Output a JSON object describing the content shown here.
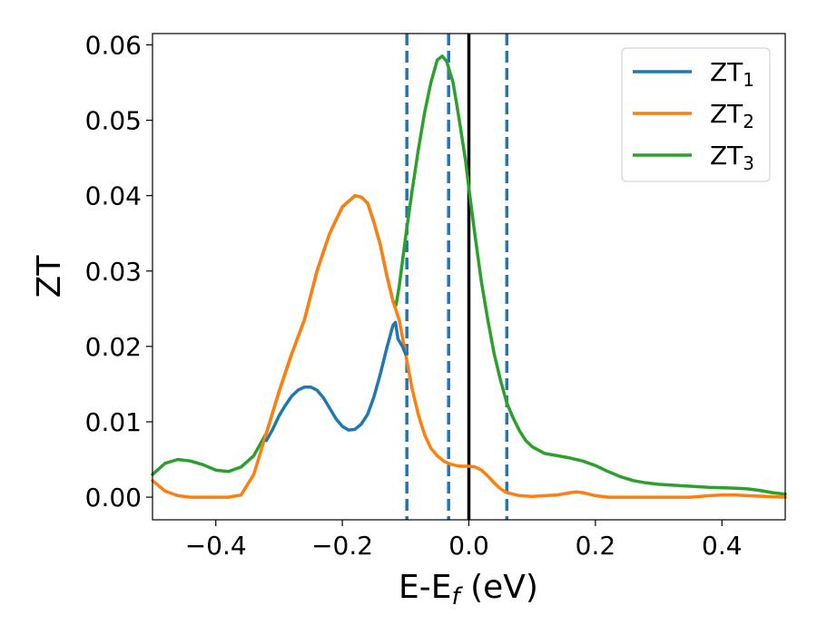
{
  "chart_data": {
    "type": "line",
    "xlabel_main": "E-E",
    "xlabel_sub": "f",
    "xlabel_unit": " (eV)",
    "ylabel": "ZT",
    "xlim": [
      -0.5,
      0.5
    ],
    "ylim": [
      -0.003,
      0.0615
    ],
    "grid": false,
    "legend_position": "top-right",
    "x_ticks": [
      {
        "value": -0.4,
        "label": "−0.4"
      },
      {
        "value": -0.2,
        "label": "−0.2"
      },
      {
        "value": 0.0,
        "label": "0.0"
      },
      {
        "value": 0.2,
        "label": "0.2"
      },
      {
        "value": 0.4,
        "label": "0.4"
      }
    ],
    "y_ticks": [
      {
        "value": 0.0,
        "label": "0.00"
      },
      {
        "value": 0.01,
        "label": "0.01"
      },
      {
        "value": 0.02,
        "label": "0.02"
      },
      {
        "value": 0.03,
        "label": "0.03"
      },
      {
        "value": 0.04,
        "label": "0.04"
      },
      {
        "value": 0.05,
        "label": "0.05"
      },
      {
        "value": 0.06,
        "label": "0.06"
      }
    ],
    "vertical_lines": [
      {
        "x": -0.098,
        "color": "#1f77b4",
        "style": "dashed"
      },
      {
        "x": -0.032,
        "color": "#1f77b4",
        "style": "dashed"
      },
      {
        "x": 0.0,
        "color": "#000000",
        "style": "solid"
      },
      {
        "x": 0.06,
        "color": "#1f77b4",
        "style": "dashed"
      }
    ],
    "series": [
      {
        "name": "ZT",
        "name_sub": "3",
        "color": "#2ca02c",
        "points": [
          [
            -0.5,
            0.003
          ],
          [
            -0.48,
            0.0045
          ],
          [
            -0.46,
            0.005
          ],
          [
            -0.44,
            0.0048
          ],
          [
            -0.42,
            0.0043
          ],
          [
            -0.4,
            0.0036
          ],
          [
            -0.38,
            0.0034
          ],
          [
            -0.36,
            0.004
          ],
          [
            -0.34,
            0.0055
          ],
          [
            -0.32,
            0.0085
          ],
          [
            -0.3,
            0.014
          ],
          [
            -0.28,
            0.019
          ],
          [
            -0.26,
            0.0235
          ],
          [
            -0.24,
            0.03
          ],
          [
            -0.22,
            0.035
          ],
          [
            -0.2,
            0.0385
          ],
          [
            -0.18,
            0.04
          ],
          [
            -0.17,
            0.0398
          ],
          [
            -0.16,
            0.039
          ],
          [
            -0.15,
            0.0365
          ],
          [
            -0.14,
            0.0335
          ],
          [
            -0.13,
            0.0295
          ],
          [
            -0.12,
            0.026
          ],
          [
            -0.115,
            0.0255
          ],
          [
            -0.11,
            0.028
          ],
          [
            -0.1,
            0.0345
          ],
          [
            -0.09,
            0.0405
          ],
          [
            -0.08,
            0.046
          ],
          [
            -0.07,
            0.051
          ],
          [
            -0.06,
            0.055
          ],
          [
            -0.05,
            0.058
          ],
          [
            -0.042,
            0.0585
          ],
          [
            -0.035,
            0.0578
          ],
          [
            -0.025,
            0.055
          ],
          [
            -0.015,
            0.05
          ],
          [
            -0.005,
            0.0445
          ],
          [
            0.0,
            0.041
          ],
          [
            0.01,
            0.0345
          ],
          [
            0.02,
            0.0285
          ],
          [
            0.03,
            0.0235
          ],
          [
            0.04,
            0.019
          ],
          [
            0.05,
            0.0155
          ],
          [
            0.06,
            0.0125
          ],
          [
            0.07,
            0.0105
          ],
          [
            0.08,
            0.0088
          ],
          [
            0.09,
            0.0075
          ],
          [
            0.1,
            0.0067
          ],
          [
            0.12,
            0.0058
          ],
          [
            0.14,
            0.0055
          ],
          [
            0.16,
            0.0052
          ],
          [
            0.18,
            0.0048
          ],
          [
            0.2,
            0.0042
          ],
          [
            0.22,
            0.0034
          ],
          [
            0.24,
            0.0027
          ],
          [
            0.26,
            0.0022
          ],
          [
            0.28,
            0.0019
          ],
          [
            0.3,
            0.0017
          ],
          [
            0.34,
            0.0015
          ],
          [
            0.38,
            0.0013
          ],
          [
            0.42,
            0.0012
          ],
          [
            0.44,
            0.0011
          ],
          [
            0.46,
            0.0009
          ],
          [
            0.48,
            0.0006
          ],
          [
            0.5,
            0.0004
          ]
        ]
      },
      {
        "name": "ZT",
        "name_sub": "2",
        "color": "#ff7f0e",
        "points": [
          [
            -0.5,
            0.0022
          ],
          [
            -0.48,
            0.0008
          ],
          [
            -0.46,
            0.0002
          ],
          [
            -0.44,
            0.0
          ],
          [
            -0.42,
            0.0
          ],
          [
            -0.4,
            0.0
          ],
          [
            -0.38,
            0.0
          ],
          [
            -0.36,
            0.0003
          ],
          [
            -0.34,
            0.003
          ],
          [
            -0.32,
            0.0085
          ],
          [
            -0.3,
            0.014
          ],
          [
            -0.28,
            0.019
          ],
          [
            -0.26,
            0.0235
          ],
          [
            -0.24,
            0.03
          ],
          [
            -0.22,
            0.035
          ],
          [
            -0.2,
            0.0385
          ],
          [
            -0.18,
            0.04
          ],
          [
            -0.17,
            0.0398
          ],
          [
            -0.16,
            0.039
          ],
          [
            -0.15,
            0.0365
          ],
          [
            -0.14,
            0.0335
          ],
          [
            -0.13,
            0.0295
          ],
          [
            -0.12,
            0.026
          ],
          [
            -0.11,
            0.0235
          ],
          [
            -0.1,
            0.019
          ],
          [
            -0.09,
            0.0145
          ],
          [
            -0.08,
            0.011
          ],
          [
            -0.07,
            0.0083
          ],
          [
            -0.06,
            0.0065
          ],
          [
            -0.05,
            0.0055
          ],
          [
            -0.04,
            0.0048
          ],
          [
            -0.03,
            0.0044
          ],
          [
            -0.02,
            0.0042
          ],
          [
            -0.01,
            0.0041
          ],
          [
            0.0,
            0.0041
          ],
          [
            0.01,
            0.004
          ],
          [
            0.02,
            0.0036
          ],
          [
            0.03,
            0.0028
          ],
          [
            0.04,
            0.0019
          ],
          [
            0.05,
            0.0011
          ],
          [
            0.06,
            0.0006
          ],
          [
            0.08,
            0.0002
          ],
          [
            0.1,
            0.0001
          ],
          [
            0.12,
            0.0002
          ],
          [
            0.14,
            0.0003
          ],
          [
            0.16,
            0.0006
          ],
          [
            0.17,
            0.0007
          ],
          [
            0.18,
            0.0006
          ],
          [
            0.2,
            0.0002
          ],
          [
            0.22,
            0.0
          ],
          [
            0.25,
            0.0
          ],
          [
            0.3,
            0.0
          ],
          [
            0.35,
            0.0
          ],
          [
            0.38,
            0.0002
          ],
          [
            0.4,
            0.0003
          ],
          [
            0.42,
            0.0003
          ],
          [
            0.44,
            0.0002
          ],
          [
            0.47,
            0.0001
          ],
          [
            0.5,
            0.0
          ]
        ]
      },
      {
        "name": "ZT",
        "name_sub": "1",
        "color": "#1f77b4",
        "points": [
          [
            -0.32,
            0.0075
          ],
          [
            -0.31,
            0.009
          ],
          [
            -0.3,
            0.0108
          ],
          [
            -0.29,
            0.0122
          ],
          [
            -0.28,
            0.0134
          ],
          [
            -0.27,
            0.0142
          ],
          [
            -0.26,
            0.0146
          ],
          [
            -0.25,
            0.0146
          ],
          [
            -0.24,
            0.0142
          ],
          [
            -0.23,
            0.0132
          ],
          [
            -0.22,
            0.0118
          ],
          [
            -0.21,
            0.0104
          ],
          [
            -0.2,
            0.0094
          ],
          [
            -0.19,
            0.0089
          ],
          [
            -0.18,
            0.009
          ],
          [
            -0.17,
            0.0097
          ],
          [
            -0.16,
            0.011
          ],
          [
            -0.15,
            0.0133
          ],
          [
            -0.14,
            0.0163
          ],
          [
            -0.13,
            0.0197
          ],
          [
            -0.12,
            0.0228
          ],
          [
            -0.116,
            0.0232
          ],
          [
            -0.112,
            0.021
          ],
          [
            -0.105,
            0.02
          ],
          [
            -0.1,
            0.019
          ]
        ]
      }
    ]
  }
}
